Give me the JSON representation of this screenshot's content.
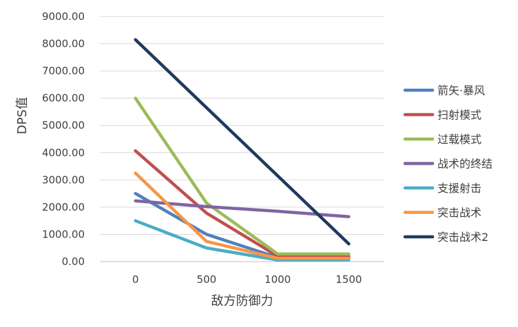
{
  "chart_data": {
    "type": "line",
    "title": "",
    "xlabel": "敌方防御力",
    "ylabel": "DPS值",
    "categories": [
      "0",
      "500",
      "1000",
      "1500"
    ],
    "ylim": [
      0,
      9000
    ],
    "y_ticks": [
      "0.00",
      "1000.00",
      "2000.00",
      "3000.00",
      "4000.00",
      "5000.00",
      "6000.00",
      "7000.00",
      "8000.00",
      "9000.00"
    ],
    "grid": "horizontal",
    "legend_position": "right",
    "series": [
      {
        "name": "箭矢·暴风",
        "color": "#4F81BD",
        "values": [
          2500,
          1000,
          150,
          150
        ]
      },
      {
        "name": "扫射模式",
        "color": "#C0504D",
        "values": [
          4070,
          1780,
          200,
          200
        ]
      },
      {
        "name": "过载模式",
        "color": "#9BBB59",
        "values": [
          6000,
          2150,
          280,
          280
        ]
      },
      {
        "name": "战术的终结",
        "color": "#8064A2",
        "values": [
          2230,
          2020,
          1850,
          1650
        ]
      },
      {
        "name": "支援射击",
        "color": "#4BACC6",
        "values": [
          1500,
          500,
          60,
          60
        ]
      },
      {
        "name": "突击战术",
        "color": "#F79646",
        "values": [
          3250,
          740,
          120,
          120
        ]
      },
      {
        "name": "突击战术2",
        "color": "#1F3A5F",
        "values": [
          8150,
          5650,
          3150,
          650
        ]
      }
    ]
  }
}
